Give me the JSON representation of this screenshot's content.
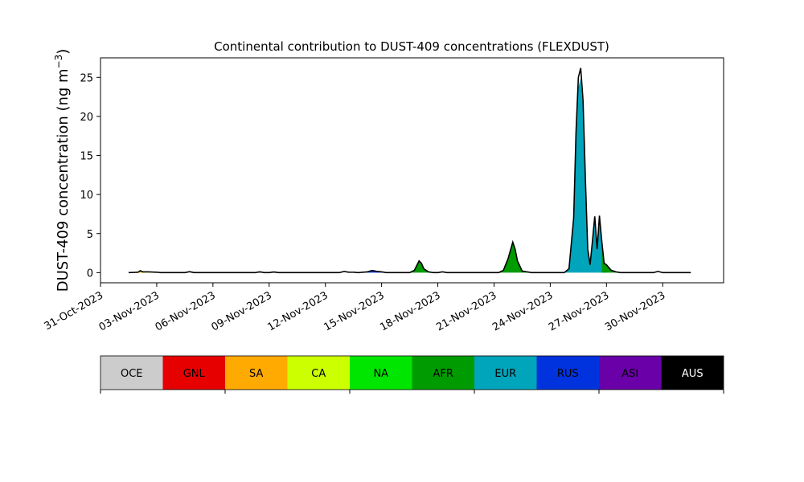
{
  "chart_data": {
    "type": "area",
    "title": "Continental contribution to DUST-409 concentrations (FLEXDUST)",
    "ylabel_main": "DUST-409 concentration (ng m",
    "ylabel_sup": "−3",
    "ylabel_close": ")",
    "xlim": [
      "2023-10-31T00:00",
      "2023-12-03T06:00"
    ],
    "ylim": [
      -1.3,
      27.5
    ],
    "yticks": [
      0,
      5,
      10,
      15,
      20,
      25
    ],
    "xticks": [
      "2023-10-31",
      "2023-11-03",
      "2023-11-06",
      "2023-11-09",
      "2023-11-12",
      "2023-11-15",
      "2023-11-18",
      "2023-11-21",
      "2023-11-24",
      "2023-11-27",
      "2023-11-30"
    ],
    "xtick_labels": [
      "31-Oct-2023",
      "03-Nov-2023",
      "06-Nov-2023",
      "09-Nov-2023",
      "12-Nov-2023",
      "15-Nov-2023",
      "18-Nov-2023",
      "21-Nov-2023",
      "24-Nov-2023",
      "27-Nov-2023",
      "30-Nov-2023"
    ],
    "grid": false,
    "stacked": true,
    "data_start": "2023-11-01T12:00",
    "data_end": "2023-12-01T12:00",
    "total_series": {
      "name": "Total",
      "color": "#000000",
      "points": [
        [
          "2023-11-01T12:00",
          0.0
        ],
        [
          "2023-11-02T00:00",
          0.05
        ],
        [
          "2023-11-02T03:00",
          0.25
        ],
        [
          "2023-11-02T06:00",
          0.1
        ],
        [
          "2023-11-02T12:00",
          0.1
        ],
        [
          "2023-11-03T00:00",
          0.05
        ],
        [
          "2023-11-03T06:00",
          0.0
        ],
        [
          "2023-11-04T12:00",
          0.0
        ],
        [
          "2023-11-04T18:00",
          0.12
        ],
        [
          "2023-11-05T00:00",
          0.0
        ],
        [
          "2023-11-07T12:00",
          0.0
        ],
        [
          "2023-11-08T06:00",
          0.0
        ],
        [
          "2023-11-08T12:00",
          0.1
        ],
        [
          "2023-11-08T18:00",
          0.0
        ],
        [
          "2023-11-09T00:00",
          0.0
        ],
        [
          "2023-11-09T06:00",
          0.08
        ],
        [
          "2023-11-09T12:00",
          0.0
        ],
        [
          "2023-11-12T18:00",
          0.0
        ],
        [
          "2023-11-13T00:00",
          0.15
        ],
        [
          "2023-11-13T06:00",
          0.05
        ],
        [
          "2023-11-13T12:00",
          0.05
        ],
        [
          "2023-11-13T18:00",
          0.0
        ],
        [
          "2023-11-14T06:00",
          0.1
        ],
        [
          "2023-11-14T12:00",
          0.28
        ],
        [
          "2023-11-14T18:00",
          0.15
        ],
        [
          "2023-11-15T00:00",
          0.1
        ],
        [
          "2023-11-15T06:00",
          0.0
        ],
        [
          "2023-11-16T12:00",
          0.0
        ],
        [
          "2023-11-16T18:00",
          0.3
        ],
        [
          "2023-11-17T00:00",
          1.5
        ],
        [
          "2023-11-17T03:00",
          1.2
        ],
        [
          "2023-11-17T06:00",
          0.5
        ],
        [
          "2023-11-17T12:00",
          0.1
        ],
        [
          "2023-11-17T18:00",
          0.0
        ],
        [
          "2023-11-18T00:00",
          0.0
        ],
        [
          "2023-11-18T06:00",
          0.1
        ],
        [
          "2023-11-18T12:00",
          0.0
        ],
        [
          "2023-11-21T06:00",
          0.0
        ],
        [
          "2023-11-21T12:00",
          0.3
        ],
        [
          "2023-11-21T18:00",
          1.8
        ],
        [
          "2023-11-22T00:00",
          3.9
        ],
        [
          "2023-11-22T03:00",
          3.0
        ],
        [
          "2023-11-22T06:00",
          1.5
        ],
        [
          "2023-11-22T12:00",
          0.2
        ],
        [
          "2023-11-22T18:00",
          0.1
        ],
        [
          "2023-11-23T00:00",
          0.0
        ],
        [
          "2023-11-24T18:00",
          0.0
        ],
        [
          "2023-11-25T00:00",
          0.5
        ],
        [
          "2023-11-25T06:00",
          7.0
        ],
        [
          "2023-11-25T09:00",
          18.0
        ],
        [
          "2023-11-25T12:00",
          25.0
        ],
        [
          "2023-11-25T15:00",
          26.2
        ],
        [
          "2023-11-25T18:00",
          22.0
        ],
        [
          "2023-11-25T21:00",
          12.0
        ],
        [
          "2023-11-26T00:00",
          3.0
        ],
        [
          "2023-11-26T03:00",
          1.0
        ],
        [
          "2023-11-26T06:00",
          4.0
        ],
        [
          "2023-11-26T09:00",
          7.2
        ],
        [
          "2023-11-26T12:00",
          3.0
        ],
        [
          "2023-11-26T15:00",
          7.3
        ],
        [
          "2023-11-26T18:00",
          4.0
        ],
        [
          "2023-11-26T21:00",
          1.2
        ],
        [
          "2023-11-27T00:00",
          1.0
        ],
        [
          "2023-11-27T06:00",
          0.3
        ],
        [
          "2023-11-27T12:00",
          0.1
        ],
        [
          "2023-11-27T18:00",
          0.0
        ],
        [
          "2023-11-29T00:00",
          0.0
        ],
        [
          "2023-11-29T12:00",
          0.0
        ],
        [
          "2023-11-29T18:00",
          0.15
        ],
        [
          "2023-11-30T00:00",
          0.0
        ],
        [
          "2023-12-01T12:00",
          0.0
        ]
      ]
    },
    "filled_components": [
      {
        "name": "EUR",
        "color": "#00a4bb",
        "windows": [
          [
            "2023-11-24T18:00",
            "2023-11-27T00:00"
          ]
        ],
        "fraction": 0.95
      },
      {
        "name": "AFR",
        "color": "#009b00",
        "windows": [
          [
            "2023-11-16T12:00",
            "2023-11-18T00:00"
          ],
          [
            "2023-11-21T06:00",
            "2023-11-23T00:00"
          ],
          [
            "2023-11-26T18:00",
            "2023-11-27T18:00"
          ]
        ],
        "fraction": 1.0
      },
      {
        "name": "CA",
        "color": "#ccff00",
        "windows": [
          [
            "2023-11-01T18:00",
            "2023-11-03T06:00"
          ]
        ],
        "fraction": 1.0
      },
      {
        "name": "SA",
        "color": "#ffaa00",
        "windows": [
          [
            "2023-11-02T00:00",
            "2023-11-02T06:00"
          ]
        ],
        "fraction": 0.5
      },
      {
        "name": "RUS",
        "color": "#0033dd",
        "windows": [
          [
            "2023-11-08T06:00",
            "2023-11-09T12:00"
          ],
          [
            "2023-11-13T18:00",
            "2023-11-15T06:00"
          ]
        ],
        "fraction": 1.0
      }
    ],
    "legend": {
      "placement": "bottom",
      "entries": [
        {
          "name": "OCE",
          "color": "#cccccc",
          "text_color": "#000000"
        },
        {
          "name": "GNL",
          "color": "#e60000",
          "text_color": "#000000"
        },
        {
          "name": "SA",
          "color": "#ffaa00",
          "text_color": "#000000"
        },
        {
          "name": "CA",
          "color": "#ccff00",
          "text_color": "#000000"
        },
        {
          "name": "NA",
          "color": "#00e600",
          "text_color": "#000000"
        },
        {
          "name": "AFR",
          "color": "#009b00",
          "text_color": "#000000"
        },
        {
          "name": "EUR",
          "color": "#00a4bb",
          "text_color": "#000000"
        },
        {
          "name": "RUS",
          "color": "#0033dd",
          "text_color": "#000000"
        },
        {
          "name": "ASI",
          "color": "#6a00a8",
          "text_color": "#000000"
        },
        {
          "name": "AUS",
          "color": "#000000",
          "text_color": "#ffffff"
        }
      ]
    }
  }
}
